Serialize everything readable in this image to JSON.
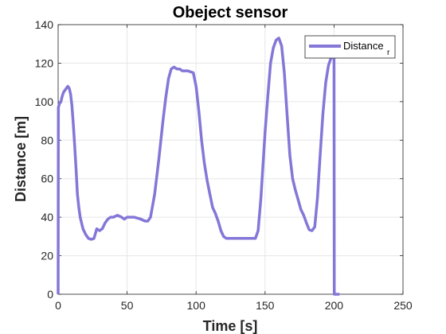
{
  "chart_data": {
    "type": "line",
    "title": "Obeject sensor",
    "xlabel": "Time [s]",
    "ylabel": "Distance [m]",
    "xlim": [
      0,
      250
    ],
    "ylim": [
      0,
      140
    ],
    "xticks": [
      0,
      50,
      100,
      150,
      200,
      250
    ],
    "yticks": [
      0,
      20,
      40,
      60,
      80,
      100,
      120,
      140
    ],
    "grid": true,
    "legend_position": "top-right",
    "colors": {
      "series": "#8377d8",
      "axis": "#262626",
      "grid": "#e6e6e6"
    },
    "series": [
      {
        "name": "Distance",
        "name_subscript": "r",
        "x": [
          0,
          0.2,
          1,
          2,
          3,
          4,
          6,
          7,
          8,
          9,
          10,
          11,
          12,
          13,
          14,
          15,
          16,
          17,
          18,
          20,
          22,
          24,
          26,
          28,
          30,
          32,
          34,
          36,
          38,
          40,
          43,
          46,
          48,
          50,
          55,
          60,
          63,
          65,
          67,
          70,
          73,
          76,
          78,
          80,
          82,
          84,
          86,
          88,
          90,
          94,
          98,
          100,
          102,
          104,
          106,
          108,
          110,
          112,
          114,
          116,
          118,
          120,
          122,
          125,
          130,
          135,
          140,
          143,
          145,
          147,
          150,
          152,
          154,
          156,
          158,
          160,
          162,
          164,
          166,
          168,
          170,
          172,
          174,
          176,
          178,
          180,
          182,
          184,
          186,
          188,
          190,
          192,
          194,
          196,
          198,
          199.5,
          200,
          200.2,
          200.5,
          201,
          204
        ],
        "y": [
          0,
          97,
          99,
          100,
          103,
          105,
          107,
          108,
          107,
          104,
          98,
          88,
          77,
          65,
          52,
          45,
          40,
          37,
          34,
          31,
          29,
          28.5,
          29,
          34,
          33,
          34,
          37,
          39,
          40,
          40,
          41,
          40,
          39,
          40,
          40,
          39,
          38,
          38,
          40,
          52,
          70,
          90,
          102,
          112,
          117,
          118,
          117,
          117,
          116,
          116,
          115,
          108,
          95,
          80,
          68,
          59,
          52,
          45,
          42,
          38,
          33,
          30,
          29,
          29,
          29,
          29,
          29,
          29,
          33,
          50,
          84,
          103,
          120,
          128,
          132,
          133,
          129,
          115,
          93,
          72,
          60,
          54,
          49,
          44,
          41,
          37,
          33.5,
          33,
          35,
          50,
          73,
          94,
          110,
          119,
          123,
          124,
          122,
          0,
          0,
          0,
          0
        ]
      }
    ]
  }
}
